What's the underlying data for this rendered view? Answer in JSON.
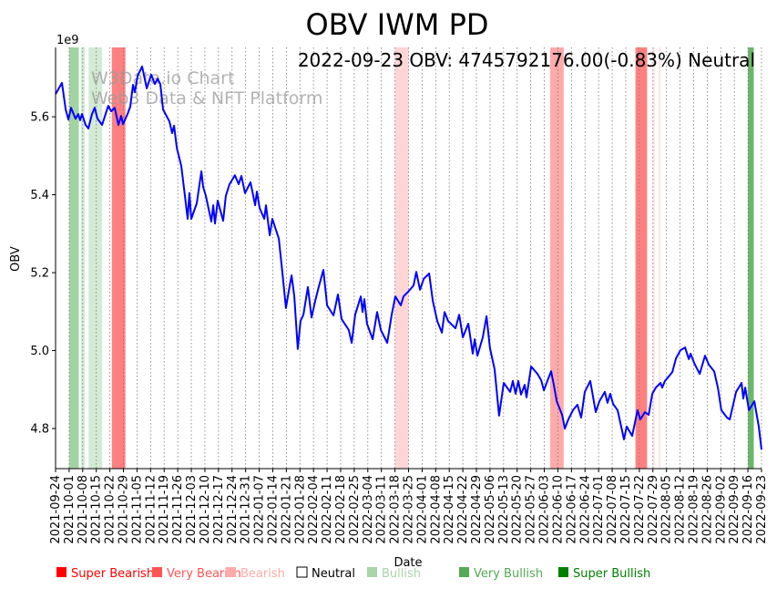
{
  "chart_data": {
    "type": "line",
    "title": "OBV IWM PD",
    "annotation": "2022-09-23 OBV: 4745792176.00(-0.83%) Neutral",
    "watermark": [
      "W3Data.io Chart",
      "Web3 Data & NFT Platform"
    ],
    "xlabel": "Date",
    "ylabel": "OBV",
    "y_scale_label": "1e9",
    "x_start": "2021-09-24",
    "x_end": "2022-09-23",
    "ylim": [
      4.697,
      5.778
    ],
    "yticks": [
      4.8,
      5.0,
      5.2,
      5.4,
      5.6
    ],
    "ytick_labels": [
      "4.8",
      "5.0",
      "5.2",
      "5.4",
      "5.6"
    ],
    "grid": "vertical dotted",
    "xtick_labels": [
      "2021-09-24",
      "2021-10-01",
      "2021-10-08",
      "2021-10-15",
      "2021-10-22",
      "2021-10-29",
      "2021-11-05",
      "2021-11-12",
      "2021-11-19",
      "2021-11-26",
      "2021-12-03",
      "2021-12-10",
      "2021-12-17",
      "2021-12-24",
      "2021-12-31",
      "2022-01-07",
      "2022-01-14",
      "2022-01-21",
      "2022-01-28",
      "2022-02-04",
      "2022-02-11",
      "2022-02-18",
      "2022-02-25",
      "2022-03-04",
      "2022-03-11",
      "2022-03-18",
      "2022-03-25",
      "2022-04-01",
      "2022-04-08",
      "2022-04-15",
      "2022-04-22",
      "2022-04-29",
      "2022-05-06",
      "2022-05-13",
      "2022-05-20",
      "2022-05-27",
      "2022-06-03",
      "2022-06-10",
      "2022-06-17",
      "2022-06-24",
      "2022-07-01",
      "2022-07-08",
      "2022-07-15",
      "2022-07-22",
      "2022-07-29",
      "2022-08-05",
      "2022-08-12",
      "2022-08-19",
      "2022-08-26",
      "2022-09-02",
      "2022-09-09",
      "2022-09-16",
      "2022-09-23"
    ],
    "series": [
      {
        "name": "OBV",
        "color": "#0000ff",
        "points_day_offset_value": [
          [
            0,
            5.658
          ],
          [
            3.3,
            5.687
          ],
          [
            5.2,
            5.619
          ],
          [
            6.6,
            5.593
          ],
          [
            8,
            5.623
          ],
          [
            10.3,
            5.595
          ],
          [
            11.7,
            5.607
          ],
          [
            12.7,
            5.591
          ],
          [
            13.6,
            5.607
          ],
          [
            15.5,
            5.579
          ],
          [
            16.9,
            5.57
          ],
          [
            18.8,
            5.607
          ],
          [
            20.2,
            5.623
          ],
          [
            21.6,
            5.595
          ],
          [
            24,
            5.579
          ],
          [
            25.8,
            5.607
          ],
          [
            27.2,
            5.628
          ],
          [
            28.7,
            5.614
          ],
          [
            30.5,
            5.623
          ],
          [
            32.4,
            5.579
          ],
          [
            33.8,
            5.602
          ],
          [
            34.8,
            5.581
          ],
          [
            37.1,
            5.607
          ],
          [
            38.5,
            5.626
          ],
          [
            39.9,
            5.682
          ],
          [
            40.9,
            5.663
          ],
          [
            42.3,
            5.705
          ],
          [
            44.6,
            5.729
          ],
          [
            47,
            5.673
          ],
          [
            49.3,
            5.708
          ],
          [
            51.2,
            5.684
          ],
          [
            52.6,
            5.698
          ],
          [
            54,
            5.684
          ],
          [
            55.4,
            5.619
          ],
          [
            58.7,
            5.588
          ],
          [
            60.1,
            5.558
          ],
          [
            61.1,
            5.577
          ],
          [
            62.5,
            5.52
          ],
          [
            64.8,
            5.474
          ],
          [
            66.7,
            5.397
          ],
          [
            68.1,
            5.338
          ],
          [
            69,
            5.404
          ],
          [
            70,
            5.338
          ],
          [
            72.8,
            5.378
          ],
          [
            75.2,
            5.46
          ],
          [
            76.1,
            5.42
          ],
          [
            77.5,
            5.397
          ],
          [
            80.3,
            5.331
          ],
          [
            81.3,
            5.373
          ],
          [
            82.2,
            5.326
          ],
          [
            83.6,
            5.385
          ],
          [
            86.4,
            5.333
          ],
          [
            87.8,
            5.397
          ],
          [
            89.7,
            5.427
          ],
          [
            92.5,
            5.45
          ],
          [
            94.4,
            5.427
          ],
          [
            95.8,
            5.448
          ],
          [
            97.7,
            5.404
          ],
          [
            100.5,
            5.432
          ],
          [
            102.9,
            5.373
          ],
          [
            103.8,
            5.408
          ],
          [
            105.2,
            5.366
          ],
          [
            107.6,
            5.338
          ],
          [
            108.5,
            5.373
          ],
          [
            110.4,
            5.296
          ],
          [
            111.8,
            5.338
          ],
          [
            115.1,
            5.287
          ],
          [
            117,
            5.198
          ],
          [
            118.8,
            5.109
          ],
          [
            120.2,
            5.151
          ],
          [
            121.7,
            5.193
          ],
          [
            123.1,
            5.139
          ],
          [
            124.9,
            5.004
          ],
          [
            126.3,
            5.076
          ],
          [
            127.8,
            5.092
          ],
          [
            130.1,
            5.163
          ],
          [
            132,
            5.085
          ],
          [
            133.9,
            5.128
          ],
          [
            135.7,
            5.163
          ],
          [
            138.1,
            5.207
          ],
          [
            140,
            5.116
          ],
          [
            143.3,
            5.09
          ],
          [
            145.6,
            5.144
          ],
          [
            147.5,
            5.081
          ],
          [
            151.2,
            5.053
          ],
          [
            152.7,
            5.02
          ],
          [
            154.5,
            5.092
          ],
          [
            157.4,
            5.139
          ],
          [
            158.3,
            5.099
          ],
          [
            159.2,
            5.132
          ],
          [
            160.6,
            5.069
          ],
          [
            163.5,
            5.029
          ],
          [
            165.8,
            5.099
          ],
          [
            167.7,
            5.053
          ],
          [
            171,
            5.02
          ],
          [
            173.3,
            5.092
          ],
          [
            175.2,
            5.139
          ],
          [
            178,
            5.116
          ],
          [
            179.4,
            5.139
          ],
          [
            181.8,
            5.151
          ],
          [
            184.6,
            5.167
          ],
          [
            186,
            5.202
          ],
          [
            187.9,
            5.156
          ],
          [
            189.8,
            5.184
          ],
          [
            192.6,
            5.198
          ],
          [
            194.5,
            5.128
          ],
          [
            196.8,
            5.076
          ],
          [
            199.2,
            5.046
          ],
          [
            200.6,
            5.099
          ],
          [
            202.4,
            5.076
          ],
          [
            206.2,
            5.057
          ],
          [
            208.1,
            5.092
          ],
          [
            210,
            5.034
          ],
          [
            212.8,
            5.069
          ],
          [
            215.1,
            4.992
          ],
          [
            216.1,
            5.029
          ],
          [
            217.5,
            4.987
          ],
          [
            220.3,
            5.034
          ],
          [
            222.2,
            5.088
          ],
          [
            224,
            5.006
          ],
          [
            226.4,
            4.952
          ],
          [
            228.7,
            4.833
          ],
          [
            231.1,
            4.917
          ],
          [
            234.4,
            4.894
          ],
          [
            235.8,
            4.922
          ],
          [
            237.2,
            4.889
          ],
          [
            238.6,
            4.922
          ],
          [
            240,
            4.887
          ],
          [
            241.9,
            4.912
          ],
          [
            242.8,
            4.88
          ],
          [
            245.2,
            4.959
          ],
          [
            248.5,
            4.94
          ],
          [
            250.4,
            4.924
          ],
          [
            251.8,
            4.898
          ],
          [
            253.2,
            4.917
          ],
          [
            255.5,
            4.947
          ],
          [
            256.9,
            4.912
          ],
          [
            258.4,
            4.87
          ],
          [
            261.2,
            4.835
          ],
          [
            262.6,
            4.8
          ],
          [
            264.4,
            4.823
          ],
          [
            266.8,
            4.847
          ],
          [
            269.1,
            4.861
          ],
          [
            271,
            4.828
          ],
          [
            272.9,
            4.894
          ],
          [
            275.7,
            4.922
          ],
          [
            278.5,
            4.842
          ],
          [
            280.4,
            4.87
          ],
          [
            283.2,
            4.894
          ],
          [
            284.6,
            4.866
          ],
          [
            286,
            4.889
          ],
          [
            287.5,
            4.863
          ],
          [
            289.8,
            4.847
          ],
          [
            293.1,
            4.772
          ],
          [
            294.5,
            4.805
          ],
          [
            297.3,
            4.781
          ],
          [
            300.1,
            4.847
          ],
          [
            301.5,
            4.823
          ],
          [
            303.9,
            4.842
          ],
          [
            305.8,
            4.835
          ],
          [
            307.7,
            4.889
          ],
          [
            309.5,
            4.905
          ],
          [
            311.9,
            4.917
          ],
          [
            312.8,
            4.905
          ],
          [
            314.2,
            4.922
          ],
          [
            316.1,
            4.933
          ],
          [
            318,
            4.945
          ],
          [
            319.9,
            4.98
          ],
          [
            322.2,
            5.001
          ],
          [
            324.6,
            5.008
          ],
          [
            326.5,
            4.978
          ],
          [
            327.4,
            4.992
          ],
          [
            329.3,
            4.968
          ],
          [
            332.1,
            4.94
          ],
          [
            334.9,
            4.987
          ],
          [
            336.8,
            4.964
          ],
          [
            339.6,
            4.947
          ],
          [
            341.5,
            4.905
          ],
          [
            343.3,
            4.847
          ],
          [
            346.2,
            4.828
          ],
          [
            347.6,
            4.823
          ],
          [
            350.9,
            4.894
          ],
          [
            353.7,
            4.917
          ],
          [
            354.6,
            4.877
          ],
          [
            355.6,
            4.905
          ],
          [
            357.5,
            4.847
          ],
          [
            360.3,
            4.87
          ],
          [
            362.6,
            4.805
          ],
          [
            364,
            4.746
          ]
        ]
      }
    ],
    "bands": [
      {
        "start": "2021-10-01",
        "end": "2021-10-06",
        "color": "#a3d3a3"
      },
      {
        "start": "2021-10-07",
        "end": "2021-10-09",
        "color": "#d3ebd3"
      },
      {
        "start": "2021-10-11",
        "end": "2021-10-18",
        "color": "#d3ebd3"
      },
      {
        "start": "2021-10-23",
        "end": "2021-10-30",
        "color": "#ff8080"
      },
      {
        "start": "2022-03-18",
        "end": "2022-03-25",
        "color": "#ffd5d5"
      },
      {
        "start": "2022-06-06",
        "end": "2022-06-13",
        "color": "#ffaaaa"
      },
      {
        "start": "2022-07-20",
        "end": "2022-07-26",
        "color": "#ff8080"
      },
      {
        "start": "2022-07-29",
        "end": "2022-07-30",
        "color": "#ffe6e6"
      },
      {
        "start": "2022-08-01",
        "end": "2022-08-02",
        "color": "#ffe6e6"
      },
      {
        "start": "2022-09-16",
        "end": "2022-09-19",
        "color": "#6ab56a"
      }
    ],
    "legend": [
      {
        "label": "Super Bearish",
        "color": "#ff0000"
      },
      {
        "label": "Very Bearish",
        "color": "#ff5555"
      },
      {
        "label": "Bearish",
        "color": "#ffaaaa"
      },
      {
        "label": "Neutral",
        "color": "#000000"
      },
      {
        "label": "Bullish",
        "color": "#aad4aa"
      },
      {
        "label": "Very Bullish",
        "color": "#55aa55"
      },
      {
        "label": "Super Bullish",
        "color": "#008000"
      }
    ],
    "legend_placement": "bottom"
  }
}
